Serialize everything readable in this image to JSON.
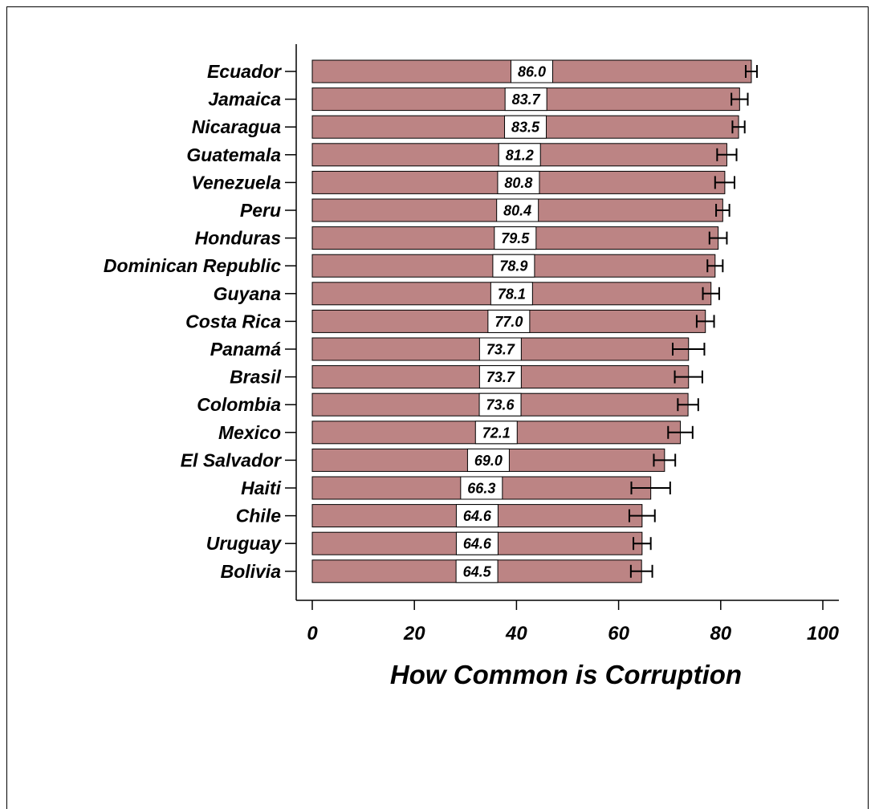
{
  "chart_data": {
    "type": "bar",
    "orientation": "horizontal",
    "title": "",
    "xlabel": "How Common is Corruption",
    "ylabel": "",
    "xlim": [
      0,
      100
    ],
    "xticks": [
      0,
      20,
      40,
      60,
      80,
      100
    ],
    "grid": false,
    "bar_color": "#bc8484",
    "categories": [
      "Ecuador",
      "Jamaica",
      "Nicaragua",
      "Guatemala",
      "Venezuela",
      "Peru",
      "Honduras",
      "Dominican Republic",
      "Guyana",
      "Costa Rica",
      "Panamá",
      "Brasil",
      "Colombia",
      "Mexico",
      "El Salvador",
      "Haiti",
      "Chile",
      "Uruguay",
      "Bolivia"
    ],
    "values": [
      86.0,
      83.7,
      83.5,
      81.2,
      80.8,
      80.4,
      79.5,
      78.9,
      78.1,
      77.0,
      73.7,
      73.7,
      73.6,
      72.1,
      69.0,
      66.3,
      64.6,
      64.6,
      64.5
    ],
    "value_labels": [
      "86.0",
      "83.7",
      "83.5",
      "81.2",
      "80.8",
      "80.4",
      "79.5",
      "78.9",
      "78.1",
      "77.0",
      "73.7",
      "73.7",
      "73.6",
      "72.1",
      "69.0",
      "66.3",
      "64.6",
      "64.6",
      "64.5"
    ],
    "error_low": [
      84.9,
      82.1,
      82.3,
      79.3,
      78.9,
      79.1,
      77.8,
      77.4,
      76.5,
      75.3,
      70.6,
      71.0,
      71.6,
      69.7,
      66.9,
      62.5,
      62.1,
      62.9,
      62.4
    ],
    "error_high": [
      87.1,
      85.3,
      84.7,
      83.1,
      82.7,
      81.7,
      81.2,
      80.4,
      79.7,
      78.7,
      76.8,
      76.4,
      75.6,
      74.5,
      71.1,
      70.1,
      67.1,
      66.3,
      66.6
    ]
  }
}
